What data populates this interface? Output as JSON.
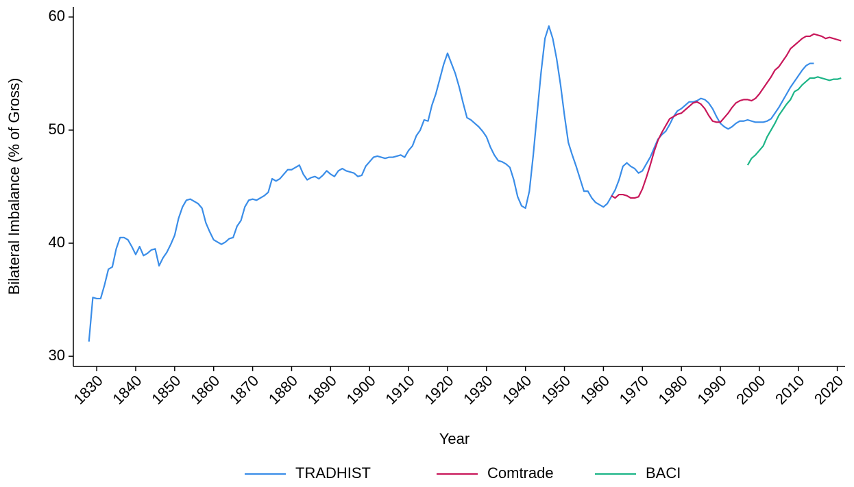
{
  "chart_data": {
    "type": "line",
    "xlabel": "Year",
    "ylabel": "Bilateral Imbalance (% of Gross)",
    "xlim": [
      1824,
      2022
    ],
    "ylim": [
      29.1,
      60.9
    ],
    "xticks": [
      1830,
      1840,
      1850,
      1860,
      1870,
      1880,
      1890,
      1900,
      1910,
      1920,
      1930,
      1940,
      1950,
      1960,
      1970,
      1980,
      1990,
      2000,
      2010,
      2020
    ],
    "yticks": [
      30,
      40,
      50,
      60
    ],
    "grid": false,
    "legend": "bottom",
    "series": [
      {
        "name": "TRADHIST",
        "color": "#3a8de8",
        "x": [
          1828,
          1829,
          1830,
          1831,
          1832,
          1833,
          1834,
          1835,
          1836,
          1837,
          1838,
          1839,
          1840,
          1841,
          1842,
          1843,
          1844,
          1845,
          1846,
          1847,
          1848,
          1849,
          1850,
          1851,
          1852,
          1853,
          1854,
          1855,
          1856,
          1857,
          1858,
          1859,
          1860,
          1861,
          1862,
          1863,
          1864,
          1865,
          1866,
          1867,
          1868,
          1869,
          1870,
          1871,
          1872,
          1873,
          1874,
          1875,
          1876,
          1877,
          1878,
          1879,
          1880,
          1881,
          1882,
          1883,
          1884,
          1885,
          1886,
          1887,
          1888,
          1889,
          1890,
          1891,
          1892,
          1893,
          1894,
          1895,
          1896,
          1897,
          1898,
          1899,
          1900,
          1901,
          1902,
          1903,
          1904,
          1905,
          1906,
          1907,
          1908,
          1909,
          1910,
          1911,
          1912,
          1913,
          1914,
          1915,
          1916,
          1917,
          1918,
          1919,
          1920,
          1921,
          1922,
          1923,
          1924,
          1925,
          1926,
          1927,
          1928,
          1929,
          1930,
          1931,
          1932,
          1933,
          1934,
          1935,
          1936,
          1937,
          1938,
          1939,
          1940,
          1941,
          1942,
          1943,
          1944,
          1945,
          1946,
          1947,
          1948,
          1949,
          1950,
          1951,
          1952,
          1953,
          1954,
          1955,
          1956,
          1957,
          1958,
          1959,
          1960,
          1961,
          1962,
          1963,
          1964,
          1965,
          1966,
          1967,
          1968,
          1969,
          1970,
          1971,
          1972,
          1973,
          1974,
          1975,
          1976,
          1977,
          1978,
          1979,
          1980,
          1981,
          1982,
          1983,
          1984,
          1985,
          1986,
          1987,
          1988,
          1989,
          1990,
          1991,
          1992,
          1993,
          1994,
          1995,
          1996,
          1997,
          1998,
          1999,
          2000,
          2001,
          2002,
          2003,
          2004,
          2005,
          2006,
          2007,
          2008,
          2009,
          2010,
          2011,
          2012,
          2013,
          2014
        ],
        "values": [
          31.3,
          35.2,
          35.1,
          35.1,
          36.3,
          37.7,
          37.9,
          39.5,
          40.5,
          40.5,
          40.3,
          39.7,
          39.0,
          39.7,
          38.9,
          39.1,
          39.4,
          39.5,
          38.0,
          38.7,
          39.2,
          39.9,
          40.7,
          42.2,
          43.2,
          43.8,
          43.9,
          43.7,
          43.5,
          43.1,
          41.8,
          41.0,
          40.3,
          40.1,
          39.9,
          40.1,
          40.4,
          40.5,
          41.5,
          42.0,
          43.2,
          43.8,
          43.9,
          43.8,
          44.0,
          44.2,
          44.5,
          45.7,
          45.5,
          45.7,
          46.1,
          46.5,
          46.5,
          46.7,
          46.9,
          46.1,
          45.6,
          45.8,
          45.9,
          45.7,
          46.0,
          46.4,
          46.1,
          45.9,
          46.4,
          46.6,
          46.4,
          46.3,
          46.2,
          45.9,
          46.0,
          46.8,
          47.2,
          47.6,
          47.7,
          47.6,
          47.5,
          47.6,
          47.6,
          47.7,
          47.8,
          47.6,
          48.2,
          48.6,
          49.5,
          50.0,
          50.9,
          50.8,
          52.2,
          53.2,
          54.5,
          55.8,
          56.8,
          55.9,
          55.0,
          53.8,
          52.4,
          51.1,
          50.9,
          50.6,
          50.3,
          49.9,
          49.4,
          48.5,
          47.8,
          47.3,
          47.2,
          47.0,
          46.7,
          45.6,
          44.1,
          43.3,
          43.1,
          44.6,
          47.8,
          51.5,
          55.1,
          58.1,
          59.2,
          58.1,
          56.3,
          54.0,
          51.3,
          48.9,
          47.8,
          46.8,
          45.7,
          44.6,
          44.6,
          44.0,
          43.6,
          43.4,
          43.2,
          43.5,
          44.1,
          44.7,
          45.6,
          46.8,
          47.1,
          46.8,
          46.6,
          46.2,
          46.4,
          47.0,
          47.6,
          48.4,
          49.2,
          49.6,
          49.9,
          50.5,
          51.2,
          51.7,
          51.9,
          52.2,
          52.5,
          52.5,
          52.6,
          52.8,
          52.7,
          52.4,
          51.9,
          51.2,
          50.6,
          50.3,
          50.1,
          50.3,
          50.6,
          50.8,
          50.8,
          50.9,
          50.8,
          50.7,
          50.7,
          50.7,
          50.8,
          51.0,
          51.5,
          52.0,
          52.6,
          53.2,
          53.8,
          54.3,
          54.8,
          55.3,
          55.7,
          55.9,
          55.9
        ]
      },
      {
        "name": "Comtrade",
        "color": "#c8175a",
        "x": [
          1962,
          1963,
          1964,
          1965,
          1966,
          1967,
          1968,
          1969,
          1970,
          1971,
          1972,
          1973,
          1974,
          1975,
          1976,
          1977,
          1978,
          1979,
          1980,
          1981,
          1982,
          1983,
          1984,
          1985,
          1986,
          1987,
          1988,
          1989,
          1990,
          1991,
          1992,
          1993,
          1994,
          1995,
          1996,
          1997,
          1998,
          1999,
          2000,
          2001,
          2002,
          2003,
          2004,
          2005,
          2006,
          2007,
          2008,
          2009,
          2010,
          2011,
          2012,
          2013,
          2014,
          2015,
          2016,
          2017,
          2018,
          2019,
          2020,
          2021
        ],
        "values": [
          44.2,
          44.0,
          44.3,
          44.3,
          44.2,
          44.0,
          44.0,
          44.1,
          44.8,
          45.8,
          46.9,
          48.1,
          49.1,
          49.8,
          50.4,
          51.0,
          51.2,
          51.4,
          51.5,
          51.8,
          52.1,
          52.4,
          52.5,
          52.3,
          51.9,
          51.3,
          50.8,
          50.7,
          50.7,
          51.1,
          51.5,
          52.0,
          52.4,
          52.6,
          52.7,
          52.7,
          52.6,
          52.8,
          53.2,
          53.7,
          54.2,
          54.7,
          55.3,
          55.6,
          56.1,
          56.6,
          57.2,
          57.5,
          57.8,
          58.1,
          58.3,
          58.3,
          58.5,
          58.4,
          58.3,
          58.1,
          58.2,
          58.1,
          58.0,
          57.9
        ]
      },
      {
        "name": "BACI",
        "color": "#1db587",
        "x": [
          1997,
          1998,
          1999,
          2000,
          2001,
          2002,
          2003,
          2004,
          2005,
          2006,
          2007,
          2008,
          2009,
          2010,
          2011,
          2012,
          2013,
          2014,
          2015,
          2016,
          2017,
          2018,
          2019,
          2020,
          2021
        ],
        "values": [
          46.9,
          47.5,
          47.8,
          48.2,
          48.6,
          49.4,
          50.0,
          50.6,
          51.3,
          51.8,
          52.3,
          52.7,
          53.4,
          53.6,
          54.0,
          54.3,
          54.6,
          54.6,
          54.7,
          54.6,
          54.5,
          54.4,
          54.5,
          54.5,
          54.6
        ]
      }
    ]
  }
}
